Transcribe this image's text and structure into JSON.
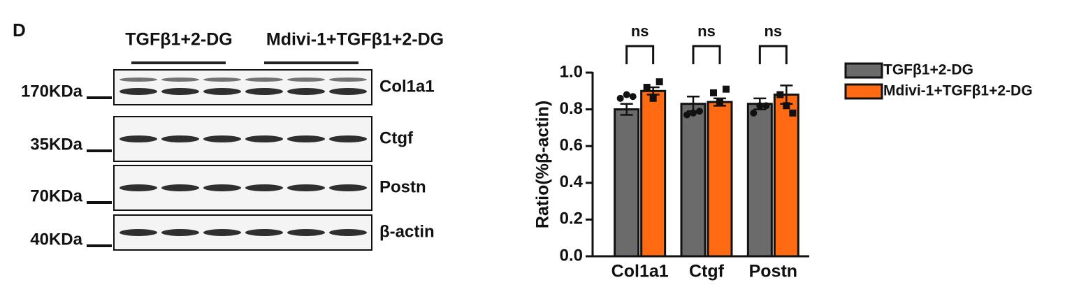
{
  "panel_label": "D",
  "blot": {
    "group_labels": [
      "TGFβ1+2-DG",
      "Mdivi-1+TGFβ1+2-DG"
    ],
    "rows": [
      {
        "marker": "170KDa",
        "protein": "Col1a1"
      },
      {
        "marker": "35KDa",
        "protein": "Ctgf"
      },
      {
        "marker": "70KDa",
        "protein": "Postn"
      },
      {
        "marker": "40KDa",
        "protein": "β-actin"
      }
    ]
  },
  "chart_data": {
    "type": "bar",
    "ylabel": "Ratio(%β-actin)",
    "categories": [
      "Col1a1",
      "Ctgf",
      "Postn"
    ],
    "series": [
      {
        "name": "TGFβ1+2-DG",
        "color": "#6b6b6b",
        "values": [
          0.8,
          0.83,
          0.83
        ],
        "errors": [
          0.03,
          0.04,
          0.03
        ],
        "points": [
          [
            0.86,
            0.77,
            0.78
          ],
          [
            0.88,
            0.78,
            0.82
          ],
          [
            0.87,
            0.79,
            0.82
          ]
        ]
      },
      {
        "name": "Mdivi-1+TGFβ1+2-DG",
        "color": "#ff6a13",
        "values": [
          0.9,
          0.84,
          0.88
        ],
        "errors": [
          0.02,
          0.02,
          0.05
        ],
        "points": [
          [
            0.92,
            0.89,
            0.88
          ],
          [
            0.86,
            0.84,
            0.82
          ],
          [
            0.95,
            0.91,
            0.78
          ]
        ]
      }
    ],
    "ylim": [
      0,
      1.0
    ],
    "yticks": [
      {
        "value": 0,
        "label": "0.0"
      },
      {
        "value": 0.2,
        "label": "0.2"
      },
      {
        "value": 0.4,
        "label": "0.4"
      },
      {
        "value": 0.6,
        "label": "0.6"
      },
      {
        "value": 0.8,
        "label": "0.8"
      },
      {
        "value": 1.0,
        "label": "1.0"
      }
    ],
    "annotations": [
      "ns",
      "ns",
      "ns"
    ],
    "legend": "right"
  }
}
